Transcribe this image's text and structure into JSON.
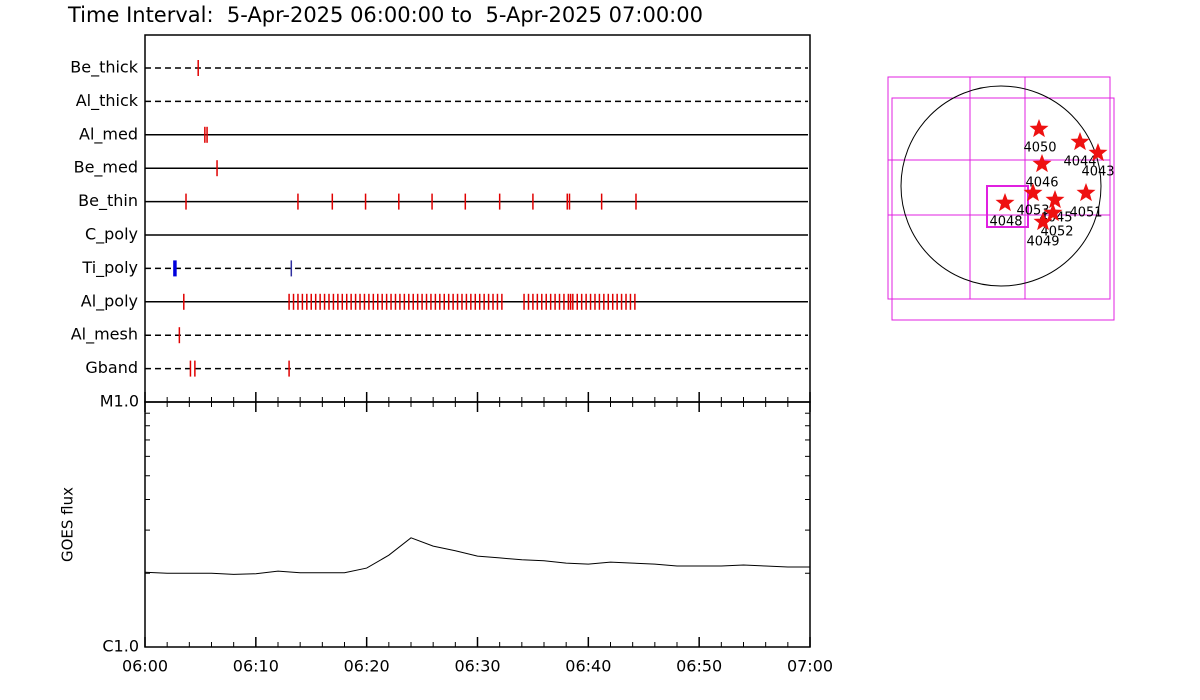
{
  "title": "Time Interval:  5-Apr-2025 06:00:00 to  5-Apr-2025 07:00:00",
  "chart_data": [
    {
      "type": "timeline",
      "xlim": [
        0,
        60
      ],
      "series": [
        {
          "name": "Be_thick",
          "line_style": "dashed",
          "color": "#e00000",
          "values": [
            4.8
          ]
        },
        {
          "name": "Al_thick",
          "line_style": "dashed",
          "color": "#e00000",
          "values": []
        },
        {
          "name": "Al_med",
          "line_style": "solid",
          "color": "#e00000",
          "values": [
            5.4,
            5.6
          ]
        },
        {
          "name": "Be_med",
          "line_style": "solid",
          "color": "#e00000",
          "values": [
            6.5
          ]
        },
        {
          "name": "Be_thin",
          "line_style": "solid",
          "color": "#e00000",
          "values": [
            3.7,
            13.8,
            16.9,
            19.9,
            22.9,
            25.9,
            28.9,
            32.0,
            35.0,
            38.1,
            38.3,
            41.2,
            44.3
          ]
        },
        {
          "name": "C_poly",
          "line_style": "solid",
          "color": "#e00000",
          "values": []
        },
        {
          "name": "Ti_poly",
          "line_style": "dashed",
          "color": "#e00000",
          "marker_colors": [
            "#0000dd",
            "#3030a0"
          ],
          "values": [
            2.7,
            13.2
          ]
        },
        {
          "name": "Al_poly",
          "line_style": "solid",
          "color": "#e00000",
          "values": [
            3.5,
            13.0,
            13.4,
            13.8,
            14.2,
            14.6,
            15.0,
            15.4,
            15.8,
            16.2,
            16.6,
            17.0,
            17.4,
            17.8,
            18.2,
            18.6,
            19.0,
            19.4,
            19.8,
            20.2,
            20.6,
            21.0,
            21.4,
            21.8,
            22.2,
            22.6,
            23.0,
            23.4,
            23.8,
            24.2,
            24.6,
            25.0,
            25.4,
            25.8,
            26.2,
            26.6,
            27.0,
            27.4,
            27.8,
            28.2,
            28.6,
            29.0,
            29.4,
            29.8,
            30.2,
            30.6,
            31.0,
            31.4,
            31.8,
            32.2,
            34.2,
            34.6,
            35.0,
            35.4,
            35.8,
            36.2,
            36.6,
            37.0,
            37.4,
            37.8,
            38.2,
            38.4,
            38.6,
            39.0,
            39.4,
            39.8,
            40.2,
            40.6,
            41.0,
            41.4,
            41.8,
            42.2,
            42.6,
            43.0,
            43.4,
            43.8,
            44.2
          ]
        },
        {
          "name": "Al_mesh",
          "line_style": "dashed",
          "color": "#e00000",
          "values": [
            3.1
          ]
        },
        {
          "name": "Gband",
          "line_style": "dashed",
          "color": "#e00000",
          "values": [
            4.1,
            4.5,
            13.0
          ]
        }
      ]
    },
    {
      "type": "line",
      "ylabel": "GOES flux",
      "color": "#000000",
      "log_y": true,
      "xlim": [
        0,
        60
      ],
      "xticks": [
        {
          "value": 0,
          "label": "06:00"
        },
        {
          "value": 10,
          "label": "06:10"
        },
        {
          "value": 20,
          "label": "06:20"
        },
        {
          "value": 30,
          "label": "06:30"
        },
        {
          "value": 40,
          "label": "06:40"
        },
        {
          "value": 50,
          "label": "06:50"
        },
        {
          "value": 60,
          "label": "07:00"
        }
      ],
      "xminor_ticks": [
        2,
        4,
        6,
        8,
        12,
        14,
        16,
        18,
        22,
        24,
        26,
        28,
        32,
        34,
        36,
        38,
        42,
        44,
        46,
        48,
        52,
        54,
        56,
        58
      ],
      "ylim": [
        1e-06,
        1e-05
      ],
      "yticks": [
        {
          "value": 1e-06,
          "label": "C1.0"
        },
        {
          "value": 1e-05,
          "label": "M1.0"
        }
      ],
      "yminor_ticks": [
        2e-06,
        3e-06,
        4e-06,
        5e-06,
        6e-06,
        7e-06,
        8e-06,
        9e-06
      ],
      "x": [
        0,
        2,
        4,
        6,
        8,
        10,
        12,
        14,
        16,
        18,
        20,
        22,
        24,
        26,
        28,
        30,
        32,
        34,
        36,
        38,
        40,
        42,
        44,
        46,
        48,
        50,
        52,
        54,
        56,
        58,
        60
      ],
      "values": [
        2.02e-06,
        2e-06,
        2e-06,
        2e-06,
        1.98e-06,
        1.99e-06,
        2.04e-06,
        2.01e-06,
        2.01e-06,
        2.01e-06,
        2.1e-06,
        2.37e-06,
        2.79e-06,
        2.58e-06,
        2.47e-06,
        2.35e-06,
        2.31e-06,
        2.27e-06,
        2.25e-06,
        2.2e-06,
        2.18e-06,
        2.22e-06,
        2.2e-06,
        2.18e-06,
        2.14e-06,
        2.14e-06,
        2.14e-06,
        2.16e-06,
        2.14e-06,
        2.12e-06,
        2.12e-06
      ]
    }
  ],
  "map": {
    "regions": [
      "4050",
      "4044",
      "4043",
      "4046",
      "4051",
      "4053",
      "4045",
      "4052",
      "4049",
      "4048"
    ]
  }
}
